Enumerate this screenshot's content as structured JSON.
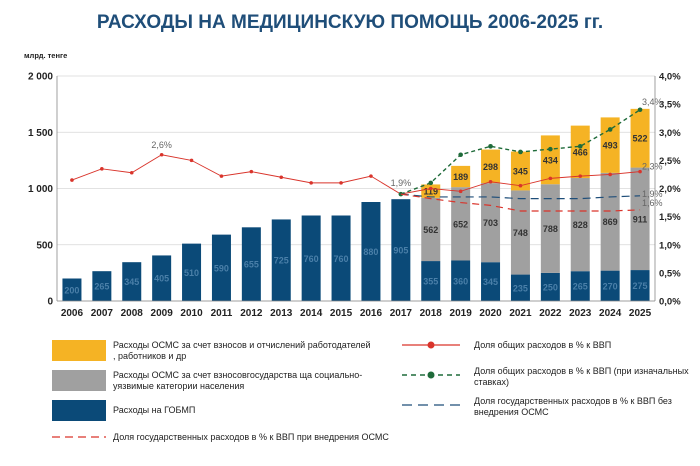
{
  "title": "РАСХОДЫ НА МЕДИЦИНСКУЮ ПОМОЩЬ 2006-2025 гг.",
  "colors": {
    "gobmp": "#0b4a78",
    "osms_state": "#a0a0a0",
    "osms_contrib": "#f5b324",
    "total_gdp": "#d9342b",
    "total_gdp_initial": "#1f6b3a",
    "state_no_osms": "#1f4e79",
    "state_osms": "#d9342b",
    "title": "#1f4e79"
  },
  "chart_data": {
    "type": "bar",
    "stacked": true,
    "categories": [
      "2006",
      "2007",
      "2008",
      "2009",
      "2010",
      "2011",
      "2012",
      "2013",
      "2014",
      "2015",
      "2016",
      "2017",
      "2018",
      "2019",
      "2020",
      "2021",
      "2022",
      "2023",
      "2024",
      "2025"
    ],
    "ylabel": "млрд. тенге",
    "ylim": [
      0,
      2000
    ],
    "yticks": [
      "0",
      "500",
      "1 000",
      "1 500",
      "2 000"
    ],
    "y2lim": [
      0,
      4.0
    ],
    "y2ticks": [
      "0,0%",
      "0,5%",
      "1,0%",
      "1,5%",
      "2,0%",
      "2,5%",
      "3,0%",
      "3,5%",
      "4,0%"
    ],
    "series": [
      {
        "name": "Расходы на ГОБМП",
        "values": [
          200,
          265,
          345,
          405,
          510,
          590,
          655,
          725,
          760,
          760,
          880,
          905,
          355,
          360,
          345,
          235,
          250,
          265,
          270,
          275
        ],
        "labels": [
          "200",
          "265",
          "345",
          "405",
          "510",
          "590",
          "655",
          "725",
          "760",
          "760",
          "880",
          "905",
          "355",
          "360",
          "345",
          "235",
          "250",
          "265",
          "270",
          "275"
        ]
      },
      {
        "name": "Расходы ОСМС за счет взносов государства за социально-уязвимые категории населения",
        "values": [
          0,
          0,
          0,
          0,
          0,
          0,
          0,
          0,
          0,
          0,
          0,
          0,
          562,
          652,
          703,
          748,
          788,
          828,
          869,
          911
        ],
        "labels": [
          "",
          "",
          "",
          "",
          "",
          "",
          "",
          "",
          "",
          "",
          "",
          "",
          "562",
          "652",
          "703",
          "748",
          "788",
          "828",
          "869",
          "911"
        ]
      },
      {
        "name": "Расходы ОСМС за счет взносов и отчислений работодателей, работников и др",
        "values": [
          0,
          0,
          0,
          0,
          0,
          0,
          0,
          0,
          0,
          0,
          0,
          0,
          119,
          189,
          298,
          345,
          434,
          466,
          493,
          522
        ],
        "labels": [
          "",
          "",
          "",
          "",
          "",
          "",
          "",
          "",
          "",
          "",
          "",
          "",
          "119",
          "189",
          "298",
          "345",
          "434",
          "466",
          "493",
          "522"
        ]
      }
    ],
    "lines": [
      {
        "name": "Доля общих расходов в % к ВВП",
        "axis": "right",
        "x_start": "2006",
        "values": [
          2.15,
          2.35,
          2.28,
          2.6,
          2.5,
          2.22,
          2.3,
          2.2,
          2.1,
          2.1,
          2.22,
          1.9,
          2.0,
          1.95,
          2.12,
          2.05,
          2.18,
          2.22,
          2.25,
          2.3
        ]
      },
      {
        "name": "Доля общих расходов в % к ВВП (при изначальных ставках)",
        "axis": "right",
        "x_start": "2017",
        "values": [
          1.9,
          2.1,
          2.6,
          2.75,
          2.65,
          2.7,
          2.75,
          3.05,
          3.4
        ]
      },
      {
        "name": "Доля государственных расходов в % к ВВП без внедрения ОСМС",
        "axis": "right",
        "x_start": "2017",
        "values": [
          1.9,
          1.85,
          1.85,
          1.85,
          1.82,
          1.82,
          1.82,
          1.85,
          1.87
        ]
      },
      {
        "name": "Доля государственных расходов в % к ВВП при внедрения ОСМС",
        "axis": "right",
        "x_start": "2017",
        "values": [
          1.9,
          1.82,
          1.75,
          1.7,
          1.6,
          1.6,
          1.6,
          1.6,
          1.62
        ]
      }
    ],
    "annotations": [
      "2,6%",
      "1,9%",
      "3,4%",
      "2,3%",
      "1,9%",
      "1,6%"
    ]
  },
  "legend": {
    "osms_contrib_a": "Расходы ОСМС за счет взносов и отчислений работодателей",
    "osms_contrib_b": ", работников и др",
    "osms_state_a": "Расходы ОСМС за счет взносовгосударства ща социально-",
    "osms_state_b": "уязвимые категории населения",
    "gobmp": "Расходы  на ГОБМП",
    "state_osms": "Доля государственных  расходов в % к ВВП при внедрения ОСМС",
    "total_gdp": "Доля общих расходов в % к ВВП",
    "total_gdp_initial_a": "Доля общих расходов в % к ВВП (при изначальных",
    "total_gdp_initial_b": "ставках)",
    "state_no_osms_a": "Доля государственных  расходов в % к ВВП без",
    "state_no_osms_b": "внедрения ОСМС"
  }
}
